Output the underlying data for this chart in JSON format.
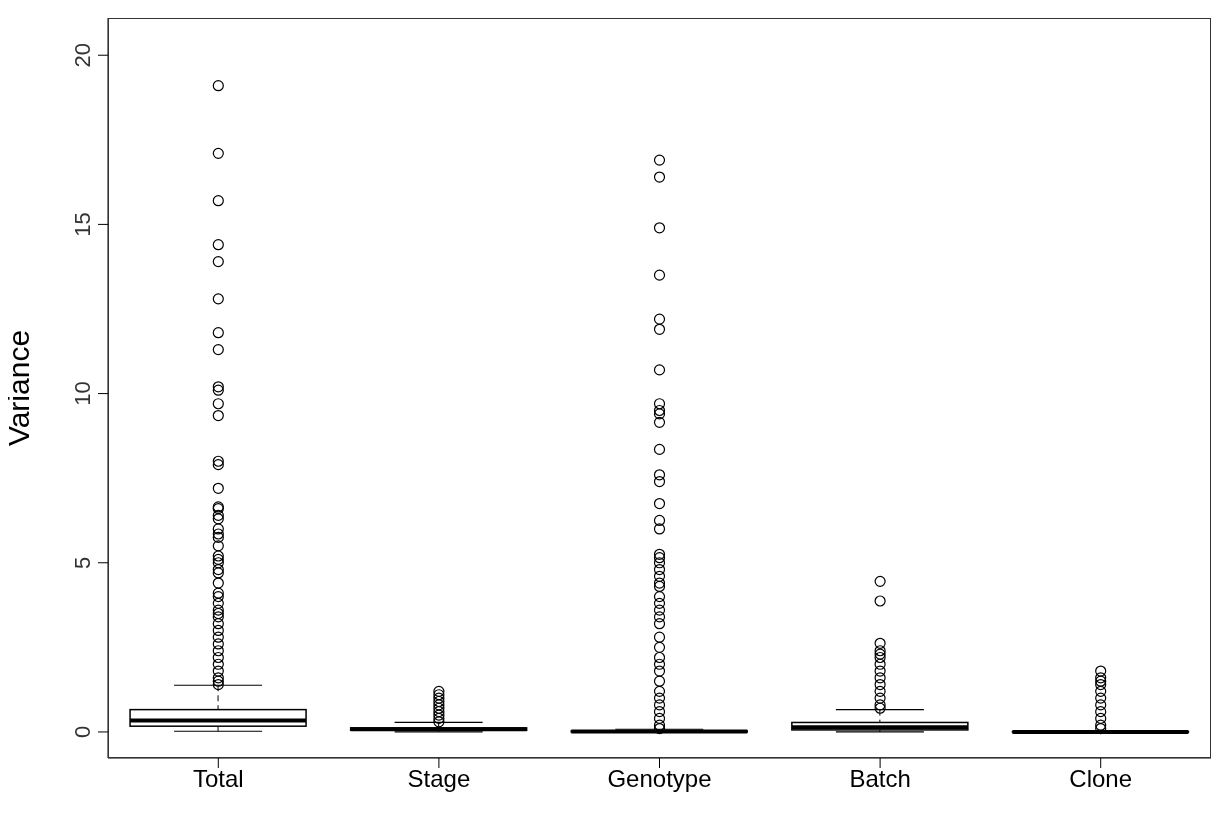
{
  "chart_data": {
    "type": "box",
    "ylabel": "Variance",
    "categories": [
      "Total",
      "Stage",
      "Genotype",
      "Batch",
      "Clone"
    ],
    "boxes": [
      {
        "low": 0.02,
        "q1": 0.17,
        "median": 0.34,
        "q3": 0.66,
        "high": 1.38,
        "outliers": [
          19.1,
          17.1,
          15.7,
          14.4,
          13.9,
          12.8,
          11.8,
          11.3,
          10.2,
          10.1,
          9.7,
          9.35,
          8.0,
          7.9,
          7.2,
          6.65,
          6.6,
          6.4,
          6.3,
          6.0,
          5.85,
          5.75,
          5.5,
          5.2,
          5.1,
          5.0,
          4.8,
          4.7,
          4.4,
          4.1,
          4.0,
          3.8,
          3.6,
          3.5,
          3.4,
          3.2,
          3.0,
          2.8,
          2.6,
          2.4,
          2.2,
          2.0,
          1.8,
          1.6,
          1.5,
          1.4
        ]
      },
      {
        "low": 0.0,
        "q1": 0.05,
        "median": 0.08,
        "q3": 0.12,
        "high": 0.28,
        "outliers": [
          1.2,
          1.1,
          1.0,
          0.9,
          0.8,
          0.7,
          0.6,
          0.5,
          0.4,
          0.3
        ]
      },
      {
        "low": 0.0,
        "q1": 0.0,
        "median": 0.01,
        "q3": 0.03,
        "high": 0.08,
        "outliers": [
          16.9,
          16.4,
          14.9,
          13.5,
          12.2,
          11.9,
          10.7,
          9.7,
          9.5,
          9.4,
          9.15,
          8.35,
          7.6,
          7.4,
          6.75,
          6.25,
          6.0,
          5.25,
          5.15,
          5.0,
          4.8,
          4.6,
          4.4,
          4.3,
          4.0,
          3.8,
          3.6,
          3.4,
          3.2,
          2.8,
          2.5,
          2.2,
          2.0,
          1.8,
          1.5,
          1.2,
          1.0,
          0.8,
          0.6,
          0.4,
          0.2,
          0.1
        ]
      },
      {
        "low": 0.0,
        "q1": 0.06,
        "median": 0.14,
        "q3": 0.28,
        "high": 0.66,
        "outliers": [
          4.45,
          3.87,
          2.62,
          2.4,
          2.3,
          2.2,
          2.0,
          1.8,
          1.6,
          1.4,
          1.2,
          1.0,
          0.8,
          0.7
        ]
      },
      {
        "low": 0.0,
        "q1": 0.0,
        "median": 0.0,
        "q3": 0.01,
        "high": 0.02,
        "outliers": [
          1.8,
          1.6,
          1.5,
          1.4,
          1.2,
          1.0,
          0.8,
          0.6,
          0.4,
          0.2,
          0.1
        ]
      }
    ],
    "ylim": [
      -0.77,
      21.1
    ],
    "yticks": [
      0,
      5,
      10,
      15,
      20
    ]
  }
}
